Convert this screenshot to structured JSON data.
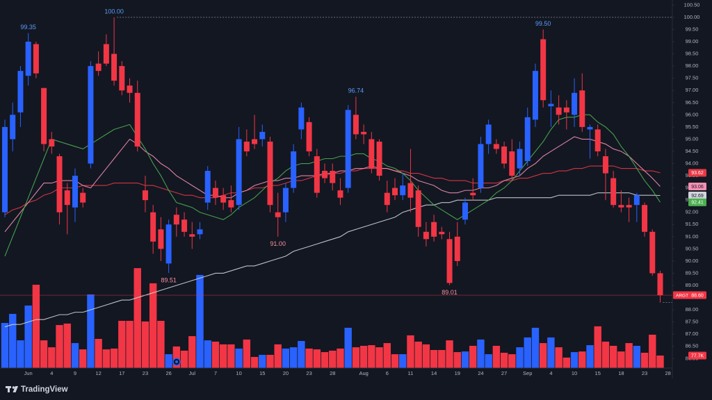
{
  "chart_data": {
    "type": "candlestick",
    "symbol": "ARGT",
    "brand": "TradingView",
    "up_color": "#2962ff",
    "down_color": "#f23645",
    "last_price_label": "88.60",
    "categories": [
      null,
      null,
      null,
      "Jun",
      null,
      null,
      "4",
      null,
      null,
      "9",
      null,
      null,
      "12",
      null,
      null,
      "17",
      null,
      null,
      "23",
      null,
      null,
      "26",
      null,
      null,
      "Jul",
      null,
      null,
      "7",
      null,
      null,
      "10",
      null,
      null,
      "15",
      null,
      null,
      "20",
      null,
      null,
      "23",
      null,
      null,
      "28",
      null,
      null,
      null,
      "Aug",
      null,
      null,
      "6",
      null,
      null,
      "11",
      null,
      null,
      "14",
      null,
      null,
      "19",
      null,
      null,
      "24",
      null,
      null,
      "27",
      null,
      null,
      "Sep",
      null,
      null,
      "4",
      null,
      null,
      "10",
      null,
      null,
      "15",
      null,
      null,
      "18",
      null,
      null,
      "23",
      null,
      null,
      "28"
    ],
    "open": [
      92.0,
      95.0,
      96.1,
      97.6,
      98.9,
      97.1,
      95.0,
      94.3,
      92.9,
      92.2,
      92.8,
      94.0,
      98.1,
      98.9,
      98.5,
      98.0,
      97.2,
      96.9,
      92.9,
      92.0,
      91.3,
      89.9,
      91.9,
      91.7,
      91.1,
      91.1,
      92.4,
      93.0,
      92.7,
      92.5,
      92.3,
      94.9,
      95.0,
      95.0,
      94.9,
      92.0,
      92.0,
      93.0,
      95.4,
      95.7,
      94.3,
      93.7,
      93.7,
      92.9,
      93.0,
      96.0,
      95.3,
      95.0,
      94.9,
      92.8,
      93.0,
      92.7,
      93.2,
      92.9,
      91.2,
      91.6,
      91.2,
      90.9,
      91.0,
      91.7,
      92.8,
      93.0,
      94.8,
      94.8,
      94.7,
      94.5,
      93.8,
      94.1,
      95.8,
      99.1,
      96.35,
      96.3,
      96.3,
      96.0,
      97.0,
      95.4,
      95.4,
      94.3,
      93.4,
      92.3,
      92.3,
      92.3,
      92.3,
      91.2,
      89.5,
      null
    ],
    "high": [
      95.8,
      96.5,
      98.0,
      99.35,
      99.0,
      97.1,
      95.3,
      94.4,
      93.2,
      93.8,
      93.0,
      98.2,
      98.6,
      99.3,
      100.0,
      98.2,
      97.5,
      97.4,
      93.5,
      92.3,
      91.8,
      91.7,
      92.2,
      92.0,
      91.6,
      91.6,
      93.9,
      93.3,
      93.0,
      93.1,
      95.5,
      95.4,
      96.0,
      95.6,
      95.1,
      92.8,
      93.2,
      94.8,
      96.5,
      95.9,
      94.6,
      94.0,
      94.0,
      93.4,
      96.4,
      96.74,
      95.6,
      95.3,
      95.0,
      93.3,
      93.4,
      93.6,
      94.6,
      93.1,
      91.6,
      91.9,
      91.4,
      91.2,
      91.6,
      92.6,
      93.4,
      95.1,
      95.8,
      95.0,
      94.9,
      95.0,
      94.9,
      96.3,
      98.1,
      99.5,
      97.0,
      96.8,
      96.6,
      97.5,
      97.7,
      95.6,
      95.6,
      94.6,
      93.7,
      92.9,
      92.6,
      92.8,
      92.4,
      91.3,
      89.6,
      null
    ],
    "low": [
      91.8,
      94.5,
      95.5,
      97.2,
      97.5,
      94.5,
      94.4,
      91.5,
      91.1,
      91.6,
      92.2,
      93.8,
      97.6,
      98.0,
      97.2,
      96.8,
      96.5,
      94.5,
      92.0,
      90.3,
      90.0,
      89.51,
      91.0,
      91.0,
      90.5,
      90.9,
      92.1,
      92.3,
      92.1,
      92.0,
      92.1,
      94.3,
      94.6,
      94.7,
      92.0,
      91.0,
      91.6,
      92.8,
      95.0,
      94.3,
      92.6,
      93.2,
      92.9,
      92.3,
      92.8,
      95.0,
      94.8,
      93.6,
      93.3,
      92.0,
      92.5,
      92.5,
      92.0,
      91.0,
      90.6,
      90.8,
      90.9,
      89.01,
      89.8,
      91.5,
      92.5,
      92.8,
      94.4,
      94.4,
      93.8,
      93.3,
      93.5,
      93.9,
      95.5,
      96.3,
      95.5,
      95.6,
      95.4,
      95.5,
      95.3,
      94.2,
      94.3,
      92.5,
      92.2,
      92.0,
      91.6,
      91.6,
      91.0,
      89.4,
      88.3,
      null
    ],
    "close": [
      95.5,
      96.0,
      97.8,
      99.0,
      97.7,
      94.8,
      94.7,
      92.0,
      92.3,
      93.5,
      92.4,
      98.0,
      97.8,
      98.1,
      97.4,
      97.0,
      96.9,
      94.7,
      92.5,
      90.8,
      90.5,
      91.5,
      91.5,
      91.2,
      91.0,
      91.3,
      93.7,
      92.6,
      92.4,
      92.2,
      95.0,
      94.5,
      94.8,
      95.3,
      92.3,
      91.8,
      93.0,
      94.5,
      96.3,
      94.5,
      92.8,
      93.4,
      93.2,
      92.6,
      96.2,
      95.2,
      95.2,
      93.8,
      93.5,
      92.3,
      92.7,
      93.1,
      92.6,
      91.4,
      90.9,
      91.0,
      91.1,
      89.1,
      90.0,
      92.4,
      92.7,
      94.8,
      95.6,
      94.6,
      94.0,
      93.5,
      94.6,
      95.9,
      97.8,
      96.6,
      96.45,
      96.0,
      96.1,
      96.9,
      95.5,
      95.5,
      94.5,
      93.6,
      92.3,
      92.2,
      92.2,
      92.7,
      91.2,
      89.5,
      88.6,
      null
    ],
    "high_labels": [
      null,
      null,
      null,
      "99.35",
      null,
      null,
      null,
      null,
      null,
      null,
      null,
      null,
      null,
      null,
      "100.00",
      null,
      null,
      null,
      null,
      null,
      null,
      null,
      null,
      null,
      null,
      null,
      null,
      null,
      null,
      null,
      null,
      null,
      null,
      null,
      null,
      null,
      null,
      null,
      null,
      null,
      null,
      null,
      null,
      null,
      null,
      "96.74",
      null,
      null,
      null,
      null,
      null,
      null,
      null,
      null,
      null,
      null,
      null,
      null,
      null,
      null,
      null,
      null,
      null,
      null,
      null,
      null,
      null,
      null,
      null,
      "99.50",
      null,
      null,
      null,
      null,
      null,
      null,
      null,
      null,
      null,
      null,
      null,
      null,
      null,
      null,
      null,
      null
    ],
    "low_labels": [
      null,
      null,
      null,
      null,
      null,
      null,
      null,
      null,
      null,
      null,
      null,
      null,
      null,
      null,
      null,
      null,
      null,
      null,
      null,
      null,
      null,
      "89.51",
      null,
      null,
      null,
      null,
      null,
      null,
      null,
      null,
      null,
      null,
      null,
      null,
      null,
      "91.00",
      null,
      null,
      null,
      null,
      null,
      null,
      null,
      null,
      null,
      null,
      null,
      null,
      null,
      null,
      null,
      null,
      null,
      null,
      null,
      null,
      null,
      "89.01",
      null,
      null,
      null,
      null,
      null,
      null,
      null,
      null,
      null,
      null,
      null,
      null,
      null,
      null,
      null,
      null,
      null,
      null,
      null,
      null,
      null,
      null,
      null,
      null,
      null,
      null,
      null,
      null
    ],
    "volume": {
      "ylim": [
        0,
        2284
      ],
      "values": [
        280,
        336,
        172,
        388,
        517,
        172,
        129,
        267,
        276,
        155,
        116,
        457,
        181,
        116,
        121,
        293,
        293,
        620,
        289,
        526,
        293,
        86,
        134,
        108,
        198,
        578,
        172,
        164,
        147,
        147,
        121,
        177,
        69,
        82,
        82,
        147,
        121,
        129,
        168,
        121,
        116,
        99,
        108,
        121,
        250,
        129,
        138,
        142,
        129,
        155,
        86,
        86,
        203,
        164,
        147,
        112,
        112,
        172,
        99,
        103,
        138,
        177,
        86,
        138,
        95,
        86,
        129,
        190,
        250,
        155,
        190,
        129,
        65,
        99,
        103,
        142,
        259,
        164,
        138,
        103,
        155,
        138,
        95,
        207,
        77.7,
        null
      ],
      "value_labels": [
        null,
        null,
        null,
        null,
        null,
        null,
        null,
        null,
        null,
        null,
        null,
        null,
        null,
        null,
        null,
        null,
        null,
        null,
        null,
        null,
        null,
        null,
        null,
        null,
        null,
        null,
        null,
        null,
        null,
        null,
        null,
        null,
        null,
        null,
        null,
        null,
        null,
        null,
        null,
        null,
        null,
        null,
        null,
        null,
        null,
        null,
        null,
        null,
        null,
        null,
        null,
        null,
        null,
        null,
        null,
        null,
        null,
        null,
        null,
        null,
        null,
        null,
        null,
        null,
        null,
        null,
        null,
        null,
        null,
        null,
        null,
        null,
        null,
        null,
        null,
        null,
        null,
        null,
        null,
        null,
        null,
        null,
        null,
        null,
        "77.7K",
        null
      ]
    },
    "moving_averages": [
      {
        "color": "#e53945",
        "values": [
          91.9,
          92.1,
          92.2,
          92.4,
          92.5,
          92.7,
          92.8,
          93.0,
          93.0,
          93.0,
          93.1,
          93.1,
          93.1,
          93.1,
          93.2,
          93.2,
          93.2,
          93.2,
          93.1,
          93.1,
          93.0,
          92.9,
          92.8,
          92.7,
          92.7,
          92.6,
          92.6,
          92.6,
          92.7,
          92.8,
          92.8,
          92.9,
          93.0,
          93.0,
          93.1,
          93.1,
          93.2,
          93.3,
          93.3,
          93.4,
          93.5,
          93.5,
          93.6,
          93.6,
          93.7,
          93.7,
          93.8,
          93.8,
          93.8,
          93.8,
          93.7,
          93.7,
          93.6,
          93.6,
          93.5,
          93.4,
          93.4,
          93.3,
          93.3,
          93.3,
          93.2,
          93.2,
          93.2,
          93.2,
          93.3,
          93.3,
          93.4,
          93.4,
          93.5,
          93.6,
          93.6,
          93.7,
          93.7,
          93.8,
          93.8,
          93.9,
          93.9,
          93.9,
          93.9,
          93.8,
          93.8,
          93.8,
          93.7,
          93.7,
          93.62,
          null
        ]
      },
      {
        "color": "#f48fb1",
        "values": [
          91.2,
          91.6,
          92.0,
          92.4,
          92.8,
          93.2,
          93.2,
          93.3,
          93.3,
          93.3,
          93.1,
          93.0,
          93.4,
          93.8,
          94.2,
          94.6,
          95.0,
          94.8,
          94.5,
          94.3,
          94.0,
          93.8,
          93.5,
          93.3,
          93.1,
          92.9,
          92.7,
          92.7,
          92.6,
          92.6,
          92.8,
          92.9,
          93.1,
          93.2,
          93.3,
          93.3,
          93.4,
          93.4,
          93.5,
          93.5,
          93.5,
          93.6,
          93.6,
          93.7,
          93.7,
          93.8,
          93.8,
          93.9,
          93.8,
          93.8,
          93.7,
          93.6,
          93.5,
          93.3,
          93.2,
          93.1,
          92.9,
          92.8,
          92.8,
          92.9,
          92.9,
          93.0,
          93.0,
          93.1,
          93.3,
          93.4,
          93.5,
          93.8,
          94.0,
          94.3,
          94.5,
          94.7,
          94.9,
          95.1,
          95.0,
          95.0,
          94.9,
          94.8,
          94.6,
          94.5,
          94.3,
          94.0,
          93.7,
          93.4,
          93.06,
          null
        ]
      },
      {
        "color": "#d1d4dc",
        "values": [
          87.3,
          87.4,
          87.4,
          87.5,
          87.6,
          87.6,
          87.7,
          87.8,
          87.8,
          87.9,
          87.9,
          88.0,
          88.1,
          88.2,
          88.3,
          88.4,
          88.4,
          88.5,
          88.6,
          88.7,
          88.8,
          88.9,
          89.0,
          89.1,
          89.2,
          89.3,
          89.4,
          89.5,
          89.5,
          89.6,
          89.7,
          89.8,
          89.8,
          89.9,
          90.0,
          90.1,
          90.2,
          90.4,
          90.5,
          90.6,
          90.7,
          90.8,
          90.9,
          91.0,
          91.2,
          91.3,
          91.4,
          91.5,
          91.6,
          91.7,
          91.8,
          92.0,
          92.1,
          92.2,
          92.3,
          92.3,
          92.4,
          92.4,
          92.5,
          92.5,
          92.5,
          92.5,
          92.5,
          92.6,
          92.6,
          92.6,
          92.6,
          92.6,
          92.6,
          92.6,
          92.6,
          92.7,
          92.7,
          92.7,
          92.7,
          92.7,
          92.8,
          92.8,
          92.8,
          92.8,
          92.8,
          92.7,
          92.7,
          92.7,
          92.69,
          null
        ]
      },
      {
        "color": "#4caf50",
        "values": [
          90.2,
          91.0,
          91.8,
          92.6,
          93.4,
          94.2,
          95.0,
          94.9,
          94.8,
          94.7,
          94.6,
          94.8,
          95.0,
          95.2,
          95.4,
          95.5,
          95.6,
          95.1,
          94.6,
          94.0,
          93.5,
          92.9,
          92.4,
          92.3,
          92.2,
          92.0,
          91.9,
          91.8,
          91.7,
          91.9,
          92.2,
          92.4,
          92.6,
          92.9,
          93.2,
          93.4,
          93.7,
          93.9,
          94.0,
          94.0,
          94.1,
          94.2,
          94.2,
          94.3,
          94.3,
          94.4,
          94.4,
          94.2,
          94.1,
          93.9,
          93.8,
          93.6,
          93.3,
          92.9,
          92.6,
          92.3,
          92.1,
          91.9,
          91.7,
          91.9,
          92.1,
          92.3,
          92.5,
          92.8,
          93.0,
          93.3,
          93.7,
          94.1,
          94.5,
          94.9,
          95.4,
          95.8,
          95.9,
          95.9,
          96.0,
          96.0,
          95.7,
          95.5,
          95.2,
          94.7,
          94.3,
          93.8,
          93.3,
          92.9,
          92.41,
          null
        ]
      }
    ],
    "ylim": [
      85.61,
      100.71
    ],
    "yticks": [
      {
        "value": 86,
        "label": "86.00"
      },
      {
        "value": 86.5,
        "label": "86.50"
      },
      {
        "value": 87,
        "label": "87.00"
      },
      {
        "value": 87.5,
        "label": "87.50"
      },
      {
        "value": 88,
        "label": "88.00"
      },
      {
        "value": 88.5,
        "label": "88.50"
      },
      {
        "value": 89,
        "label": "89.00"
      },
      {
        "value": 89.5,
        "label": "89.50"
      },
      {
        "value": 90,
        "label": "90.00"
      },
      {
        "value": 90.5,
        "label": "90.50"
      },
      {
        "value": 91,
        "label": "91.00"
      },
      {
        "value": 91.5,
        "label": "91.50"
      },
      {
        "value": 92,
        "label": "92.00"
      },
      {
        "value": 92.5,
        "label": "92.50"
      },
      {
        "value": 93,
        "label": "93.00"
      },
      {
        "value": 93.5,
        "label": "93.50"
      },
      {
        "value": 94,
        "label": "94.00"
      },
      {
        "value": 94.5,
        "label": "94.50"
      },
      {
        "value": 95,
        "label": "95.00"
      },
      {
        "value": 95.5,
        "label": "95.50"
      },
      {
        "value": 96,
        "label": "96.00"
      },
      {
        "value": 96.5,
        "label": "96.50"
      },
      {
        "value": 97,
        "label": "97.00"
      },
      {
        "value": 97.5,
        "label": "97.50"
      },
      {
        "value": 98,
        "label": "98.00"
      },
      {
        "value": 98.5,
        "label": "98.50"
      },
      {
        "value": 99,
        "label": "99.00"
      },
      {
        "value": 99.5,
        "label": "99.50"
      },
      {
        "value": 100,
        "label": "100.00"
      },
      {
        "value": 100.5,
        "label": "100.50"
      }
    ]
  }
}
